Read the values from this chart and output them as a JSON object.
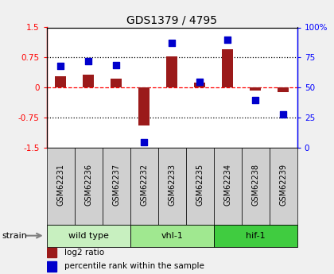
{
  "title": "GDS1379 / 4795",
  "samples": [
    "GSM62231",
    "GSM62236",
    "GSM62237",
    "GSM62232",
    "GSM62233",
    "GSM62235",
    "GSM62234",
    "GSM62238",
    "GSM62239"
  ],
  "log2_ratio": [
    0.28,
    0.32,
    0.22,
    -0.95,
    0.78,
    0.13,
    0.95,
    -0.08,
    -0.12
  ],
  "percentile": [
    68,
    72,
    69,
    5,
    87,
    55,
    90,
    40,
    28
  ],
  "groups": [
    {
      "label": "wild type",
      "start": 0,
      "end": 3,
      "color": "#c8f0c0"
    },
    {
      "label": "vhl-1",
      "start": 3,
      "end": 6,
      "color": "#a0e890"
    },
    {
      "label": "hif-1",
      "start": 6,
      "end": 9,
      "color": "#40cc40"
    }
  ],
  "bar_color": "#9b1a1a",
  "dot_color": "#0000cc",
  "ylim_left": [
    -1.5,
    1.5
  ],
  "ylim_right": [
    0,
    100
  ],
  "yticks_left": [
    -1.5,
    -0.75,
    0,
    0.75,
    1.5
  ],
  "ytick_labels_left": [
    "-1.5",
    "-0.75",
    "0",
    "0.75",
    "1.5"
  ],
  "yticks_right": [
    0,
    25,
    50,
    75,
    100
  ],
  "ytick_labels_right": [
    "0",
    "25",
    "50",
    "75",
    "100%"
  ],
  "hlines": [
    -0.75,
    0,
    0.75
  ],
  "hline_colors": [
    "black",
    "red",
    "black"
  ],
  "hline_styles": [
    "dotted",
    "dashed",
    "dotted"
  ],
  "strain_label": "strain",
  "legend_bar_label": "log2 ratio",
  "legend_dot_label": "percentile rank within the sample",
  "plot_bg_color": "#ffffff",
  "label_bg_color": "#d0d0d0",
  "fig_bg_color": "#f0f0f0"
}
